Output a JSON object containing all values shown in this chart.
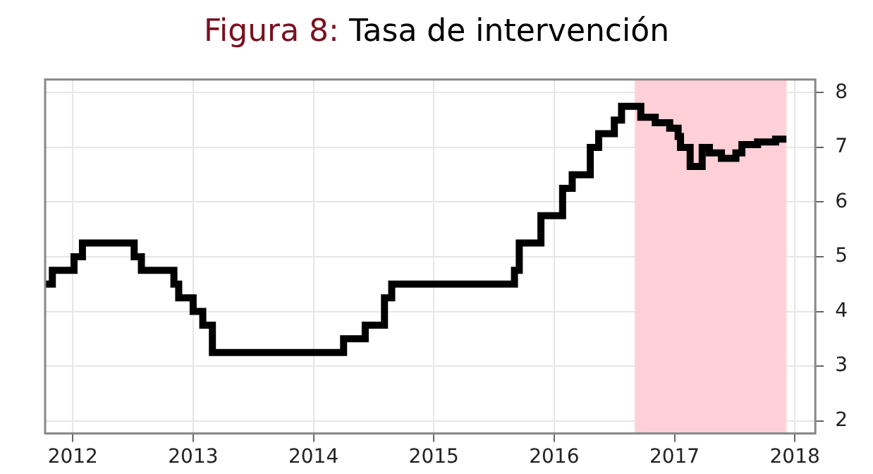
{
  "chart_data": {
    "type": "step",
    "title": "Figura 8: Tasa de intervención",
    "x": [
      2011.77,
      2011.83,
      2012.01,
      2012.08,
      2012.51,
      2012.57,
      2012.84,
      2012.88,
      2013.0,
      2013.08,
      2013.16,
      2014.25,
      2014.43,
      2014.59,
      2014.65,
      2015.67,
      2015.71,
      2015.89,
      2016.07,
      2016.15,
      2016.3,
      2016.37,
      2016.5,
      2016.56,
      2016.72,
      2016.84,
      2016.96,
      2017.03,
      2017.05,
      2017.13,
      2017.23,
      2017.29,
      2017.39,
      2017.51,
      2017.56,
      2017.69,
      2017.84,
      2017.93
    ],
    "series": [
      {
        "color": "#000000",
        "values": [
          4.5,
          4.75,
          5.0,
          5.25,
          5.0,
          4.75,
          4.5,
          4.25,
          4.0,
          3.75,
          3.25,
          3.5,
          3.75,
          4.25,
          4.5,
          4.75,
          5.25,
          5.75,
          6.25,
          6.5,
          7.0,
          7.25,
          7.5,
          7.75,
          7.55,
          7.45,
          7.35,
          7.2,
          7.0,
          6.65,
          7.0,
          6.9,
          6.8,
          6.9,
          7.05,
          7.1,
          7.15,
          7.15
        ]
      }
    ],
    "xlim": [
      2011.77,
      2018.17
    ],
    "xticks": [
      2012,
      2013,
      2014,
      2015,
      2016,
      2017,
      2018
    ],
    "ylim": [
      1.77,
      8.24
    ],
    "yticks": [
      2,
      3,
      4,
      5,
      6,
      7,
      8
    ],
    "bands": [
      {
        "axis": "x",
        "from": 2016.67,
        "to": 2017.93,
        "color": "#ffd0d8"
      }
    ],
    "grid": true,
    "legend": false
  }
}
